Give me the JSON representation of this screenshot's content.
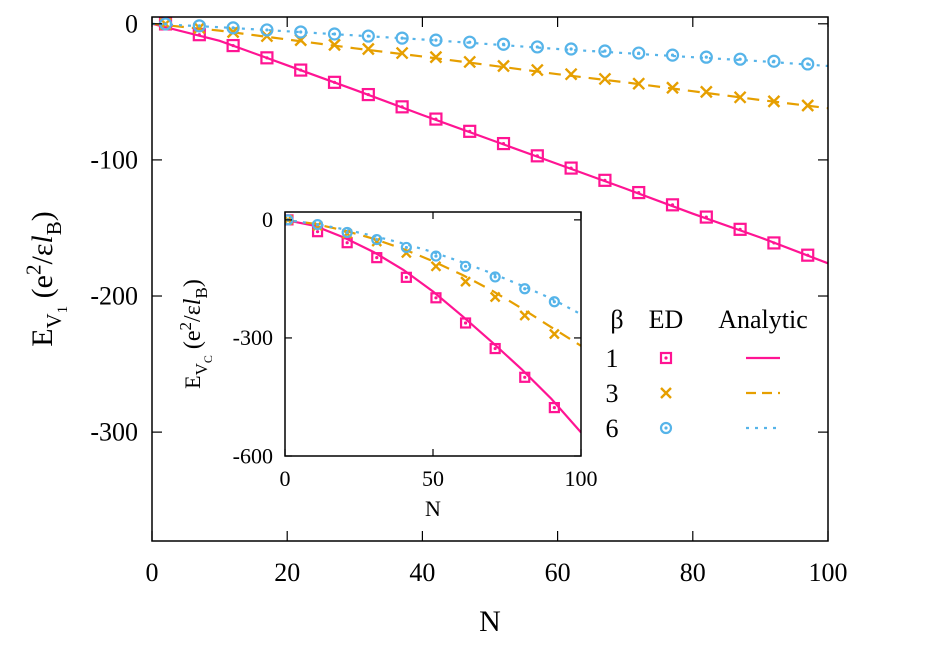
{
  "chart_data": [
    {
      "type": "line",
      "xlabel": "N",
      "ylabel": "E_{V_1} (e^2/εl_B)",
      "ylabel_parts": {
        "main": "E",
        "sub": "V",
        "subsub": "1",
        "open": "(e",
        "sup": "2",
        "mid": "/ε",
        "l": "l",
        "lsub": "B",
        "close": ")"
      },
      "xlim": [
        0,
        100
      ],
      "ylim": [
        -380,
        5
      ],
      "xticks": [
        "0",
        "20",
        "40",
        "60",
        "80",
        "100"
      ],
      "yticks": [
        "0",
        "-100",
        "-200",
        "-300"
      ],
      "xtick_values": [
        0,
        20,
        40,
        60,
        80,
        100
      ],
      "ytick_values": [
        0,
        -100,
        -200,
        -300
      ],
      "legend": {
        "header": {
          "beta": "β",
          "ed": "ED",
          "analytic": "Analytic"
        },
        "entries": [
          "1",
          "3",
          "6"
        ],
        "placement": "center-right"
      },
      "series": [
        {
          "beta": "1",
          "color": "#ff1493",
          "marker": "square",
          "dash": "solid",
          "ed_x": [
            2,
            7,
            12,
            17,
            22,
            27,
            32,
            37,
            42,
            47,
            52,
            57,
            62,
            67,
            72,
            77,
            82,
            87,
            92,
            97
          ],
          "ed_y": [
            -0.1,
            -8,
            -16,
            -25,
            -34,
            -43,
            -52,
            -61,
            -70,
            -79,
            -88,
            -97,
            -106,
            -115,
            -124,
            -133,
            -142,
            -151,
            -161,
            -170
          ],
          "analytic_x": [
            0,
            10,
            20,
            30,
            40,
            50,
            60,
            70,
            80,
            90,
            100
          ],
          "analytic_y": [
            0,
            -12.5,
            -30.5,
            -48.5,
            -67,
            -85,
            -103,
            -121,
            -139.5,
            -157,
            -176
          ]
        },
        {
          "beta": "3",
          "color": "#e69f00",
          "marker": "cross",
          "dash": "dashed",
          "ed_x": [
            2,
            7,
            12,
            17,
            22,
            27,
            32,
            37,
            42,
            47,
            52,
            57,
            62,
            67,
            72,
            77,
            82,
            87,
            92,
            97
          ],
          "ed_y": [
            -0.1,
            -3,
            -6,
            -9,
            -12,
            -15.5,
            -18.5,
            -21.5,
            -24.5,
            -28,
            -31,
            -34,
            -37,
            -40.5,
            -44,
            -47,
            -50,
            -54,
            -57,
            -60
          ],
          "analytic_x": [
            0,
            10,
            20,
            30,
            40,
            50,
            60,
            70,
            80,
            90,
            100
          ],
          "analytic_y": [
            0,
            -5,
            -11.5,
            -18,
            -24,
            -30.5,
            -37,
            -43,
            -49.5,
            -56,
            -62
          ]
        },
        {
          "beta": "6",
          "color": "#56b4e9",
          "marker": "circle",
          "dash": "dotted",
          "ed_x": [
            2,
            7,
            12,
            17,
            22,
            27,
            32,
            37,
            42,
            47,
            52,
            57,
            62,
            67,
            72,
            77,
            82,
            87,
            92,
            97
          ],
          "ed_y": [
            -0.1,
            -1.5,
            -3,
            -4.5,
            -6,
            -7.5,
            -9,
            -10.5,
            -12,
            -13.5,
            -15,
            -17,
            -18.5,
            -20,
            -21.5,
            -23,
            -24.5,
            -26,
            -27.5,
            -29.5
          ],
          "analytic_x": [
            0,
            10,
            20,
            30,
            40,
            50,
            60,
            70,
            80,
            90,
            100
          ],
          "analytic_y": [
            0,
            -2.5,
            -5.5,
            -8.5,
            -11.5,
            -15,
            -18.5,
            -21.5,
            -24.5,
            -27.5,
            -31
          ]
        }
      ]
    },
    {
      "type": "line",
      "xlabel": "N",
      "ylabel": "E_{V_C} (e^2/εl_B)",
      "ylabel_parts": {
        "main": "E",
        "sub": "V",
        "subsub": "C",
        "open": "(e",
        "sup": "2",
        "mid": "/ε",
        "l": "l",
        "lsub": "B",
        "close": ")"
      },
      "xlim": [
        0,
        100
      ],
      "ylim": [
        -600,
        20
      ],
      "xticks": [
        "0",
        "50",
        "100"
      ],
      "yticks": [
        "0",
        "-300",
        "-600"
      ],
      "xtick_values": [
        0,
        50,
        100
      ],
      "ytick_values": [
        0,
        -300,
        -600
      ],
      "series": [
        {
          "beta": "1",
          "color": "#ff1493",
          "marker": "square",
          "dash": "solid",
          "ed_x": [
            1,
            11,
            21,
            31,
            41,
            51,
            61,
            71,
            81,
            91
          ],
          "ed_y": [
            0,
            -30,
            -58,
            -96,
            -146,
            -198,
            -262,
            -327,
            -400,
            -477
          ],
          "analytic_x": [
            0,
            10,
            20,
            30,
            40,
            50,
            60,
            70,
            80,
            90,
            100
          ],
          "analytic_y": [
            0,
            -15,
            -45,
            -82,
            -127,
            -182,
            -245,
            -311,
            -380,
            -455,
            -540
          ]
        },
        {
          "beta": "3",
          "color": "#e69f00",
          "marker": "cross",
          "dash": "dashed",
          "ed_x": [
            1,
            11,
            21,
            31,
            41,
            51,
            61,
            71,
            81,
            91
          ],
          "ed_y": [
            0,
            -15,
            -35,
            -55,
            -84,
            -118,
            -157,
            -196,
            -243,
            -290
          ],
          "analytic_x": [
            0,
            10,
            20,
            30,
            40,
            50,
            60,
            70,
            80,
            90,
            100
          ],
          "analytic_y": [
            0,
            -10,
            -27,
            -48,
            -74,
            -105,
            -140,
            -180,
            -225,
            -273,
            -320
          ]
        },
        {
          "beta": "6",
          "color": "#56b4e9",
          "marker": "circle",
          "dash": "dotted",
          "ed_x": [
            1,
            11,
            21,
            31,
            41,
            51,
            61,
            71,
            81,
            91
          ],
          "ed_y": [
            0,
            -12,
            -32,
            -50,
            -70,
            -92,
            -118,
            -145,
            -175,
            -208
          ],
          "analytic_x": [
            0,
            10,
            20,
            30,
            40,
            50,
            60,
            70,
            80,
            90,
            100
          ],
          "analytic_y": [
            0,
            -10,
            -24,
            -41,
            -60,
            -82,
            -108,
            -136,
            -167,
            -200,
            -240
          ]
        }
      ]
    }
  ]
}
